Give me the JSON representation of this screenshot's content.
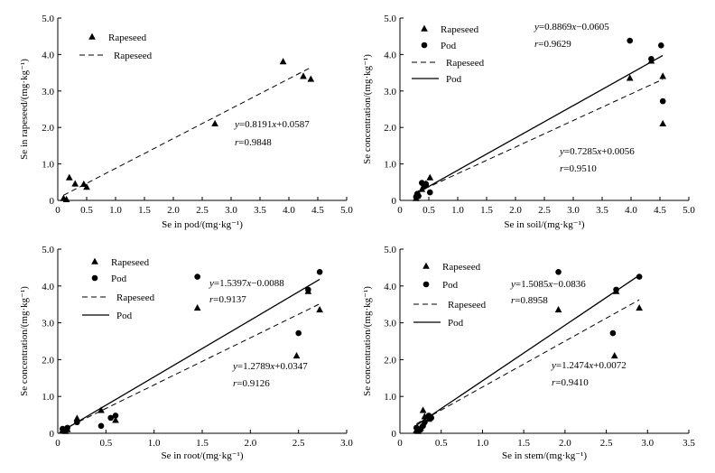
{
  "chart_data": [
    {
      "type": "scatter",
      "xlabel": "Se in pod/(mg·kg⁻¹)",
      "ylabel": "Se in rapeseed/(mg·kg⁻¹)",
      "xlim": [
        0,
        5
      ],
      "ylim": [
        0,
        5
      ],
      "xticks": [
        "0",
        "0.5",
        "1.0",
        "1.5",
        "2.0",
        "2.5",
        "3.0",
        "3.5",
        "4.0",
        "4.5",
        "5.0"
      ],
      "yticks": [
        "0",
        "1.0",
        "2.0",
        "3.0",
        "4.0",
        "5.0"
      ],
      "legend": [
        {
          "label": "Rapeseed",
          "kind": "triangle"
        },
        {
          "label": "Rapeseed",
          "kind": "dashed"
        }
      ],
      "series": [
        {
          "name": "Rapeseed",
          "marker": "triangle",
          "points": [
            [
              0.1,
              0.05
            ],
            [
              0.15,
              0.02
            ],
            [
              0.2,
              0.62
            ],
            [
              0.3,
              0.45
            ],
            [
              0.45,
              0.44
            ],
            [
              0.5,
              0.36
            ],
            [
              2.72,
              2.1
            ],
            [
              3.9,
              3.8
            ],
            [
              4.25,
              3.4
            ],
            [
              4.38,
              3.32
            ]
          ]
        }
      ],
      "fits": [
        {
          "name": "Rapeseed",
          "style": "dashed",
          "slope": 0.8191,
          "intercept": 0.0587,
          "x_range": [
            0.1,
            4.4
          ],
          "equation": "y=0.8191x+0.0587",
          "r_label": "r=0.9848"
        }
      ]
    },
    {
      "type": "scatter",
      "xlabel": "Se in soil/(mg·kg⁻¹)",
      "ylabel": "Se concentration/(mg·kg⁻¹)",
      "xlim": [
        0,
        5
      ],
      "ylim": [
        0,
        5
      ],
      "xticks": [
        "0",
        "0.5",
        "1.0",
        "1.5",
        "2.0",
        "2.5",
        "3.0",
        "3.5",
        "4.0",
        "4.5",
        "5.0"
      ],
      "yticks": [
        "0",
        "1.0",
        "2.0",
        "3.0",
        "4.0",
        "5.0"
      ],
      "legend": [
        {
          "label": "Rapeseed",
          "kind": "triangle"
        },
        {
          "label": "Pod",
          "kind": "circle"
        },
        {
          "label": "Rapeseed",
          "kind": "dashed"
        },
        {
          "label": "Pod",
          "kind": "solid"
        }
      ],
      "series": [
        {
          "name": "Rapeseed",
          "marker": "triangle",
          "points": [
            [
              0.28,
              0.05
            ],
            [
              0.3,
              0.12
            ],
            [
              0.32,
              0.18
            ],
            [
              0.38,
              0.3
            ],
            [
              0.45,
              0.45
            ],
            [
              0.52,
              0.62
            ],
            [
              3.98,
              3.35
            ],
            [
              4.35,
              3.82
            ],
            [
              4.55,
              3.4
            ],
            [
              4.55,
              2.1
            ]
          ]
        },
        {
          "name": "Pod",
          "marker": "circle",
          "points": [
            [
              0.28,
              0.1
            ],
            [
              0.3,
              0.18
            ],
            [
              0.32,
              0.12
            ],
            [
              0.38,
              0.48
            ],
            [
              0.42,
              0.38
            ],
            [
              0.45,
              0.45
            ],
            [
              0.52,
              0.22
            ],
            [
              3.98,
              4.38
            ],
            [
              4.35,
              3.88
            ],
            [
              4.52,
              4.25
            ],
            [
              4.55,
              2.72
            ]
          ]
        }
      ],
      "fits": [
        {
          "name": "Pod",
          "style": "solid",
          "slope": 0.8869,
          "intercept": -0.0605,
          "x_range": [
            0.28,
            4.55
          ],
          "equation": "y=0.8869x−0.0605",
          "r_label": "r=0.9629"
        },
        {
          "name": "Rapeseed",
          "style": "dashed",
          "slope": 0.7285,
          "intercept": 0.0056,
          "x_range": [
            0.28,
            4.55
          ],
          "equation": "y=0.7285x+0.0056",
          "r_label": "r=0.9510"
        }
      ]
    },
    {
      "type": "scatter",
      "xlabel": "Se in root/(mg·kg⁻¹)",
      "ylabel": "Se concentration/(mg·kg⁻¹)",
      "xlim": [
        0,
        3
      ],
      "ylim": [
        0,
        5
      ],
      "xticks": [
        "0",
        "0.5",
        "1.0",
        "1.5",
        "2.0",
        "2.5",
        "3.0"
      ],
      "yticks": [
        "0",
        "1.0",
        "2.0",
        "3.0",
        "4.0",
        "5.0"
      ],
      "legend": [
        {
          "label": "Rapeseed",
          "kind": "triangle"
        },
        {
          "label": "Pod",
          "kind": "circle"
        },
        {
          "label": "Rapeseed",
          "kind": "dashed"
        },
        {
          "label": "Pod",
          "kind": "solid"
        }
      ],
      "series": [
        {
          "name": "Rapeseed",
          "marker": "triangle",
          "points": [
            [
              0.05,
              0.08
            ],
            [
              0.08,
              0.05
            ],
            [
              0.1,
              0.1
            ],
            [
              0.2,
              0.4
            ],
            [
              0.45,
              0.62
            ],
            [
              0.6,
              0.35
            ],
            [
              1.45,
              3.4
            ],
            [
              2.48,
              2.1
            ],
            [
              2.6,
              3.85
            ],
            [
              2.72,
              3.35
            ]
          ]
        },
        {
          "name": "Pod",
          "marker": "circle",
          "points": [
            [
              0.05,
              0.12
            ],
            [
              0.08,
              0.1
            ],
            [
              0.1,
              0.15
            ],
            [
              0.2,
              0.3
            ],
            [
              0.45,
              0.2
            ],
            [
              0.55,
              0.42
            ],
            [
              0.6,
              0.48
            ],
            [
              1.45,
              4.25
            ],
            [
              2.5,
              2.72
            ],
            [
              2.6,
              3.9
            ],
            [
              2.72,
              4.38
            ]
          ]
        }
      ],
      "fits": [
        {
          "name": "Pod",
          "style": "solid",
          "slope": 1.5397,
          "intercept": -0.0088,
          "x_range": [
            0.05,
            2.72
          ],
          "equation": "y=1.5397x−0.0088",
          "r_label": "r=0.9137"
        },
        {
          "name": "Rapeseed",
          "style": "dashed",
          "slope": 1.2789,
          "intercept": 0.0347,
          "x_range": [
            0.05,
            2.72
          ],
          "equation": "y=1.2789x+0.0347",
          "r_label": "r=0.9126"
        }
      ]
    },
    {
      "type": "scatter",
      "xlabel": "Se in stem/(mg·kg⁻¹)",
      "ylabel": "Se concentration/(mg·kg⁻¹)",
      "xlim": [
        0,
        3.5
      ],
      "ylim": [
        0,
        5
      ],
      "xticks": [
        "0",
        "0.5",
        "1.0",
        "1.5",
        "2.0",
        "2.5",
        "3.0",
        "3.5"
      ],
      "yticks": [
        "0",
        "1.0",
        "2.0",
        "3.0",
        "4.0",
        "5.0"
      ],
      "legend": [
        {
          "label": "Rapeseed",
          "kind": "triangle"
        },
        {
          "label": "Pod",
          "kind": "circle"
        },
        {
          "label": "Rapeseed",
          "kind": "dashed"
        },
        {
          "label": "Pod",
          "kind": "solid"
        }
      ],
      "series": [
        {
          "name": "Rapeseed",
          "marker": "triangle",
          "points": [
            [
              0.2,
              0.08
            ],
            [
              0.22,
              0.05
            ],
            [
              0.25,
              0.15
            ],
            [
              0.28,
              0.62
            ],
            [
              0.3,
              0.45
            ],
            [
              0.35,
              0.38
            ],
            [
              1.92,
              3.35
            ],
            [
              2.6,
              2.1
            ],
            [
              2.62,
              3.85
            ],
            [
              2.9,
              3.4
            ]
          ]
        },
        {
          "name": "Pod",
          "marker": "circle",
          "points": [
            [
              0.2,
              0.15
            ],
            [
              0.25,
              0.1
            ],
            [
              0.28,
              0.2
            ],
            [
              0.3,
              0.3
            ],
            [
              0.35,
              0.48
            ],
            [
              0.38,
              0.42
            ],
            [
              1.92,
              4.38
            ],
            [
              2.58,
              2.72
            ],
            [
              2.62,
              3.9
            ],
            [
              2.9,
              4.25
            ]
          ]
        }
      ],
      "fits": [
        {
          "name": "Pod",
          "style": "solid",
          "slope": 1.5085,
          "intercept": -0.0836,
          "x_range": [
            0.2,
            2.9
          ],
          "equation": "y=1.5085x−0.0836",
          "r_label": "r=0.8958"
        },
        {
          "name": "Rapeseed",
          "style": "dashed",
          "slope": 1.2474,
          "intercept": 0.0072,
          "x_range": [
            0.2,
            2.9
          ],
          "equation": "y=1.2474x+0.0072",
          "r_label": "r=0.9410"
        }
      ]
    }
  ]
}
